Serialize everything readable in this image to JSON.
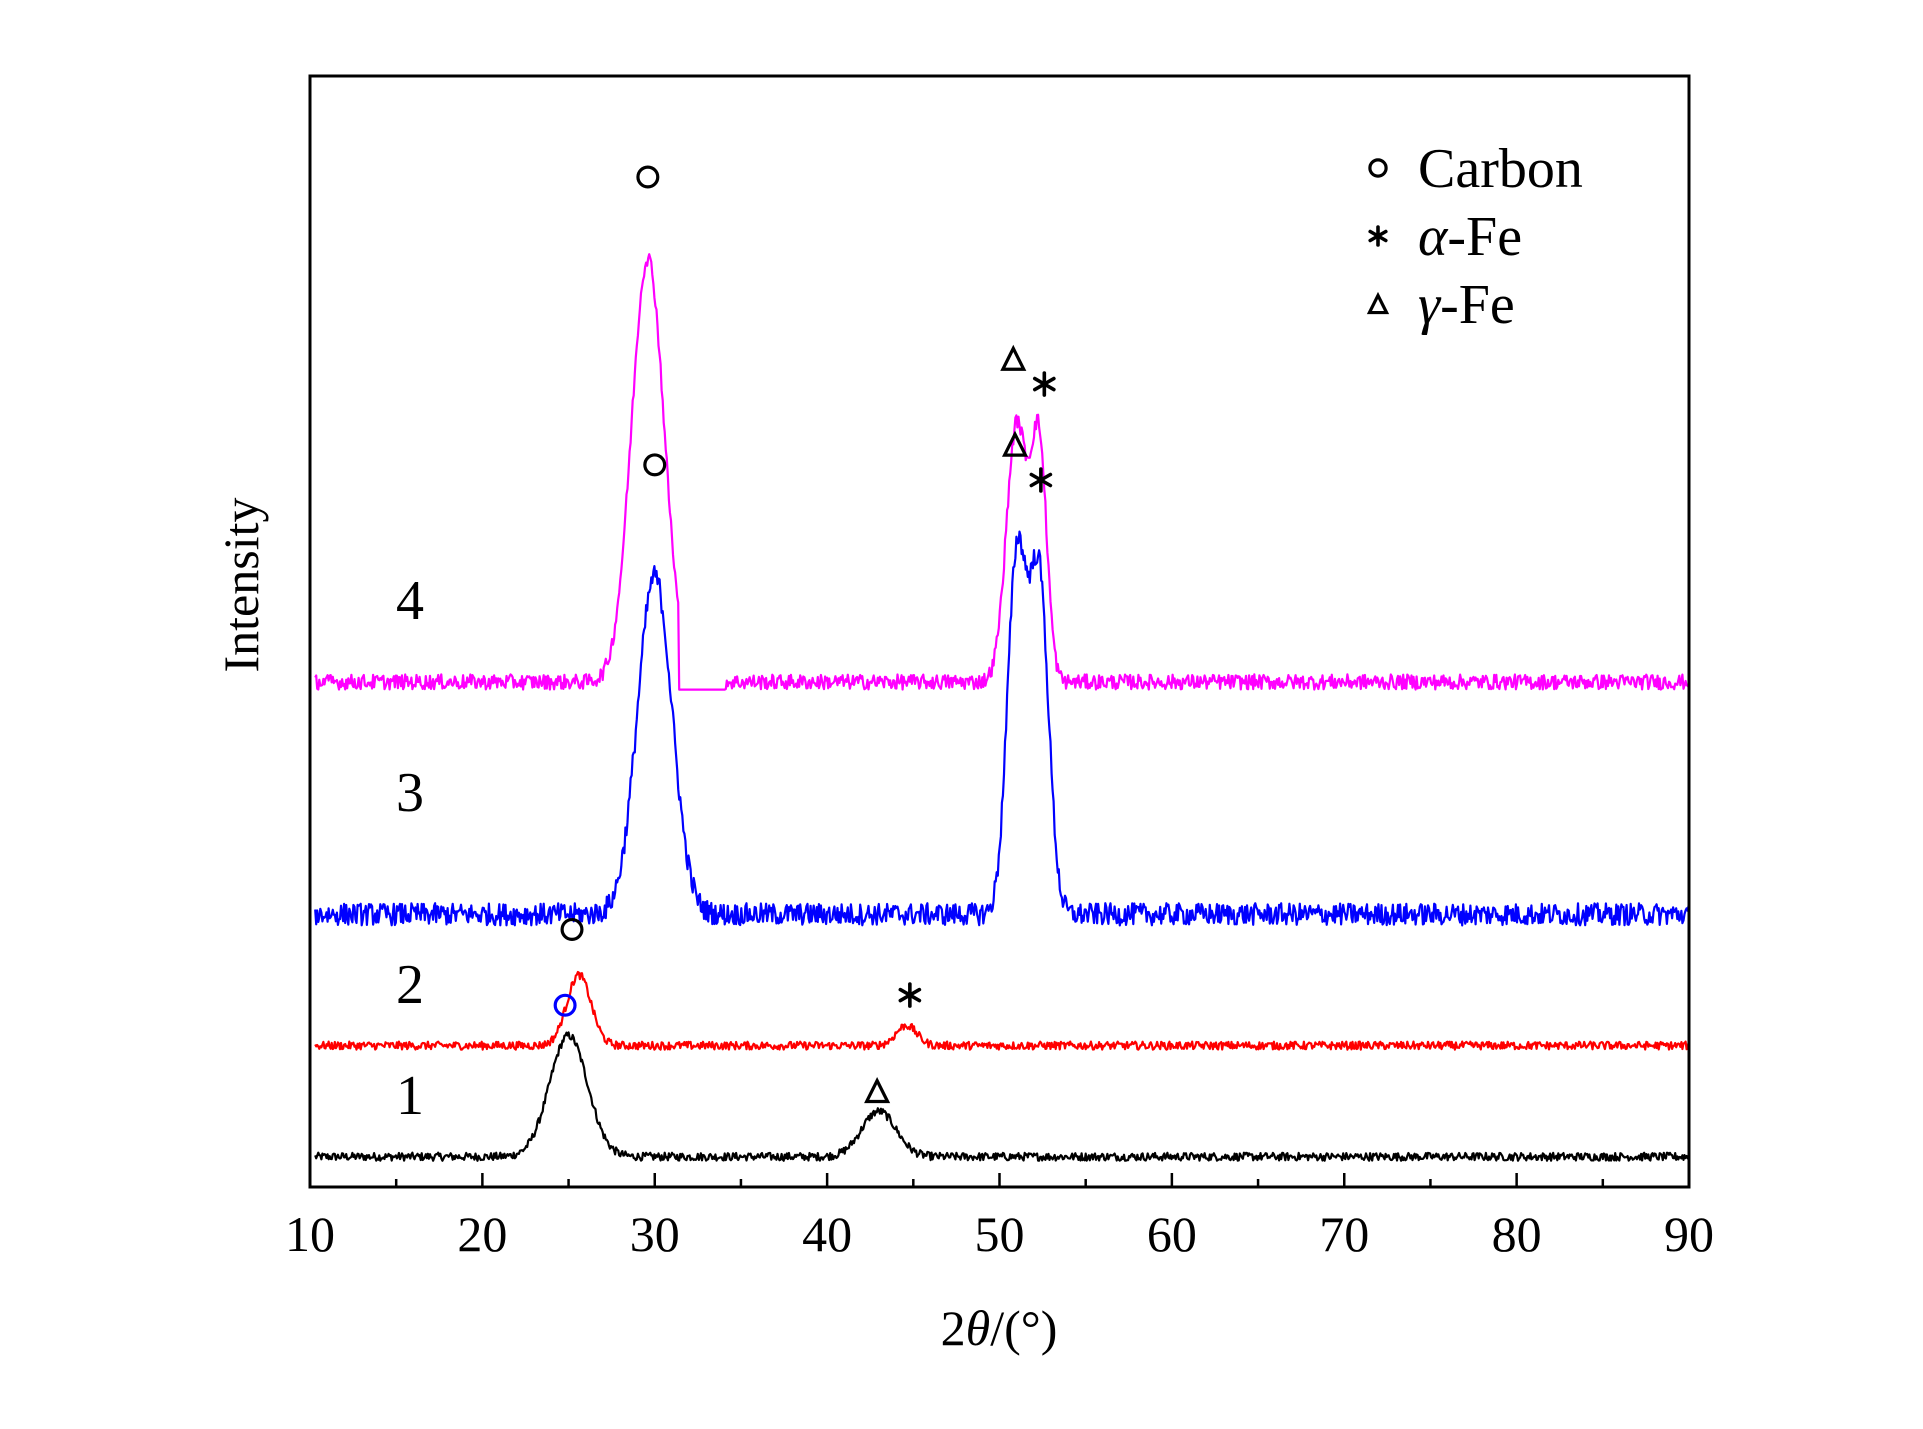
{
  "chart_data": {
    "type": "line",
    "xlabel_parts": [
      "2",
      "θ",
      "/(°)"
    ],
    "ylabel": "Intensity",
    "xlim": [
      10,
      90
    ],
    "x_ticks": [
      "10",
      "20",
      "30",
      "40",
      "50",
      "60",
      "70",
      "80",
      "90"
    ],
    "y_ticks_shown": false,
    "grid": false,
    "legend_position": "top-right",
    "legend": [
      {
        "symbol": "circle",
        "symbol_name": "circle-marker-icon",
        "prefix": "",
        "text": "Carbon"
      },
      {
        "symbol": "star",
        "symbol_name": "star-marker-icon",
        "prefix": "α",
        "text": "-Fe"
      },
      {
        "symbol": "triangle",
        "symbol_name": "triangle-marker-icon",
        "prefix": "γ",
        "text": "-Fe"
      }
    ],
    "series": [
      {
        "name": "1",
        "color": "#000000",
        "baseline": 6,
        "noise": 0.8,
        "peaks": [
          {
            "x": 25.0,
            "height": 24,
            "width": 1.1,
            "phase": "Carbon"
          },
          {
            "x": 43.0,
            "height": 9,
            "width": 1.0,
            "phase": "γ-Fe"
          }
        ]
      },
      {
        "name": "2",
        "color": "#ff0000",
        "baseline": 28,
        "noise": 0.8,
        "peaks": [
          {
            "x": 25.6,
            "height": 14,
            "width": 0.7,
            "phase": "Carbon"
          },
          {
            "x": 44.6,
            "height": 4,
            "width": 0.6,
            "phase": "α-Fe"
          }
        ]
      },
      {
        "name": "3",
        "color": "#0000ff",
        "baseline": 54,
        "noise": 2.2,
        "peaks": [
          {
            "x": 30.0,
            "height": 67,
            "width": 1.0,
            "phase": "Carbon"
          },
          {
            "x": 51.0,
            "height": 70,
            "width": 0.55,
            "phase": "γ-Fe"
          },
          {
            "x": 52.3,
            "height": 66,
            "width": 0.55,
            "phase": "α-Fe"
          }
        ]
      },
      {
        "name": "4",
        "color": "#ff00ff",
        "baseline": 100,
        "noise": 1.5,
        "peaks": [
          {
            "x": 29.6,
            "height": 84,
            "width": 0.95,
            "phase": "Carbon"
          },
          {
            "x": 51.0,
            "height": 51,
            "width": 0.6,
            "phase": "γ-Fe"
          },
          {
            "x": 52.3,
            "height": 46,
            "width": 0.45,
            "phase": "α-Fe"
          }
        ]
      }
    ],
    "phase_markers": [
      {
        "symbol": "circle",
        "x": 29.6,
        "y": 200,
        "name": "carbon-marker-s4"
      },
      {
        "symbol": "triangle",
        "x": 50.8,
        "y": 164,
        "name": "gamma-fe-marker-s4"
      },
      {
        "symbol": "star",
        "x": 52.6,
        "y": 159,
        "name": "alpha-fe-marker-s4"
      },
      {
        "symbol": "circle",
        "x": 30.0,
        "y": 143,
        "name": "carbon-marker-s3"
      },
      {
        "symbol": "triangle",
        "x": 50.9,
        "y": 147,
        "name": "gamma-fe-marker-s3"
      },
      {
        "symbol": "star",
        "x": 52.4,
        "y": 140,
        "name": "alpha-fe-marker-s3"
      },
      {
        "symbol": "circle",
        "x": 25.2,
        "y": 51,
        "name": "carbon-marker-s2"
      },
      {
        "symbol": "circle",
        "x": 24.8,
        "y": 36,
        "color": "#0000ff",
        "name": "carbon-marker-s1"
      },
      {
        "symbol": "star",
        "x": 44.8,
        "y": 38,
        "name": "alpha-fe-marker-s2"
      },
      {
        "symbol": "triangle",
        "x": 42.9,
        "y": 19,
        "name": "gamma-fe-marker-s1"
      }
    ]
  }
}
